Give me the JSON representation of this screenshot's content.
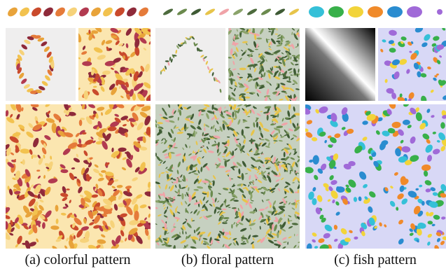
{
  "captions": [
    "(a) colorful pattern",
    "(b) floral pattern",
    "(c) fish pattern"
  ]
}
